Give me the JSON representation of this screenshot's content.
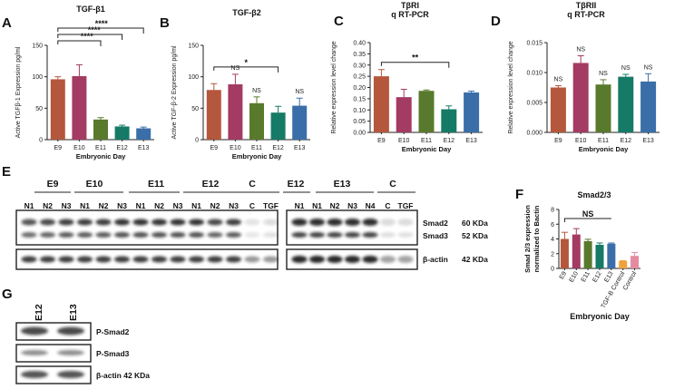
{
  "colors": [
    "#b5573c",
    "#a43b62",
    "#597a2c",
    "#157a66",
    "#3a6ea8",
    "#f0a23a",
    "#e58aa0"
  ],
  "chart_data": [
    {
      "panel": "A",
      "type": "bar",
      "title": "TGF-β1",
      "ylabel": "Active TGFβ-1 Expression pg/ml",
      "xlabel": "Embryonic Day",
      "categories": [
        "E9",
        "E10",
        "E11",
        "E12",
        "E13"
      ],
      "values": [
        96,
        101,
        32,
        21,
        18
      ],
      "errors": [
        4,
        18,
        3,
        2,
        2
      ],
      "ylim": [
        0,
        150
      ],
      "yticks": [
        "0",
        "50",
        "100",
        "150"
      ],
      "ytick_values": [
        0,
        50,
        100,
        150
      ],
      "brackets": [
        {
          "from": "E9",
          "to": "E11",
          "label": "****"
        },
        {
          "from": "E9",
          "to": "E12",
          "label": "****"
        },
        {
          "from": "E9",
          "to": "E13",
          "label": "****"
        }
      ],
      "labels": []
    },
    {
      "panel": "B",
      "type": "bar",
      "title": "TGF-β2",
      "ylabel": "Active TGF-β-2 Expression pg/ml",
      "xlabel": "Embryonic Day",
      "categories": [
        "E9",
        "E10",
        "E11",
        "E12",
        "E13"
      ],
      "values": [
        79,
        88,
        58,
        43,
        54
      ],
      "errors": [
        10,
        16,
        10,
        10,
        12
      ],
      "ylim": [
        0,
        150
      ],
      "yticks": [
        "0",
        "50",
        "100",
        "150"
      ],
      "ytick_values": [
        0,
        50,
        100,
        150
      ],
      "brackets": [
        {
          "from": "E9",
          "to": "E12",
          "label": "*"
        }
      ],
      "labels": [
        "",
        "NS",
        "NS",
        "",
        "NS"
      ]
    },
    {
      "panel": "C",
      "type": "bar",
      "title": "TβRI",
      "subtitle": "q RT-PCR",
      "ylabel": "Relative expression level change",
      "xlabel": "Embryonic Day",
      "categories": [
        "E9",
        "E10",
        "E11",
        "E12",
        "E13"
      ],
      "values": [
        0.25,
        0.157,
        0.185,
        0.103,
        0.178
      ],
      "errors": [
        0.03,
        0.035,
        0.004,
        0.015,
        0.006
      ],
      "ylim": [
        0,
        0.4
      ],
      "yticks": [
        "0.00",
        "0.05",
        "0.10",
        "0.15",
        "0.20",
        "0.25",
        "0.30",
        "0.35",
        "0.40"
      ],
      "ytick_values": [
        0,
        0.05,
        0.1,
        0.15,
        0.2,
        0.25,
        0.3,
        0.35,
        0.4
      ],
      "brackets": [
        {
          "from": "E9",
          "to": "E12",
          "label": "**"
        }
      ],
      "labels": []
    },
    {
      "panel": "D",
      "type": "bar",
      "title": "TβRII",
      "subtitle": "q RT-PCR",
      "ylabel": "Relative expression level change",
      "xlabel": "Embryonic Day",
      "categories": [
        "E9",
        "E10",
        "E11",
        "E12",
        "E13"
      ],
      "values": [
        0.0075,
        0.0116,
        0.008,
        0.0093,
        0.0085
      ],
      "errors": [
        0.0003,
        0.0012,
        0.0008,
        0.0004,
        0.0013
      ],
      "ylim": [
        0,
        0.015
      ],
      "yticks": [
        "0.000",
        "0.005",
        "0.010",
        "0.015"
      ],
      "ytick_values": [
        0,
        0.005,
        0.01,
        0.015
      ],
      "brackets": [],
      "labels": [
        "NS",
        "NS",
        "NS",
        "NS",
        "NS"
      ]
    },
    {
      "panel": "F",
      "type": "bar",
      "title": "Smad2/3",
      "ylabel": "Smad 2/3 expression normalized to Bactin",
      "xlabel": "Embryonic Day",
      "categories": [
        "E9",
        "E10",
        "E11",
        "E12",
        "E13",
        "TGF-B Control",
        "Control"
      ],
      "values": [
        4.0,
        4.6,
        3.7,
        3.2,
        3.35,
        1.0,
        1.7
      ],
      "errors": [
        0.9,
        0.8,
        0.25,
        0.25,
        0.1,
        0.05,
        0.45
      ],
      "ylim": [
        0,
        8
      ],
      "yticks": [
        "0",
        "2",
        "4",
        "6",
        "8"
      ],
      "ytick_values": [
        0,
        2,
        4,
        6,
        8
      ],
      "brackets": [
        {
          "from": "E9",
          "to": "E13",
          "label": "NS"
        }
      ],
      "labels": []
    }
  ],
  "panel_labels": {
    "A": "A",
    "B": "B",
    "C": "C",
    "D": "D",
    "E": "E",
    "F": "F",
    "G": "G"
  },
  "blotE": {
    "days_left": [
      "E9",
      "E10",
      "E11",
      "E12",
      "C"
    ],
    "days_right": [
      "E12",
      "E13",
      "C"
    ],
    "lanes_left": [
      "N1",
      "N2",
      "N3",
      "N1",
      "N2",
      "N3",
      "N1",
      "N2",
      "N3",
      "N1",
      "N2",
      "N3",
      "C",
      "TGF"
    ],
    "lanes_right": [
      "N1",
      "N1",
      "N2",
      "N3",
      "N4",
      "C",
      "TGF"
    ],
    "proteins": [
      "Smad2",
      "Smad3",
      "β-actin"
    ],
    "sizes": [
      "60 KDa",
      "52 KDa",
      "42 KDa"
    ]
  },
  "blotG": {
    "lanes": [
      "E12",
      "E13"
    ],
    "proteins": [
      "P-Smad2",
      "P-Smad3",
      "β-actin 42 KDa"
    ]
  }
}
